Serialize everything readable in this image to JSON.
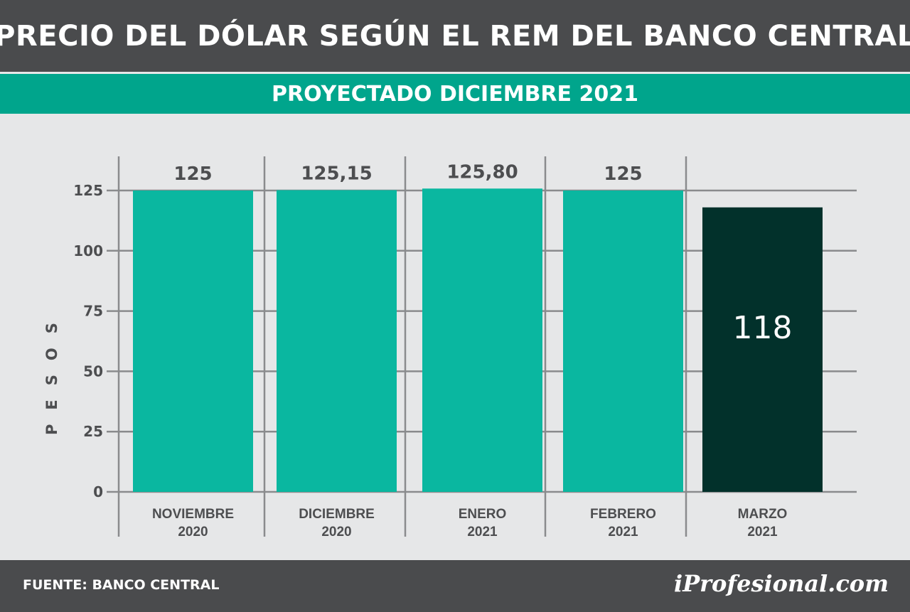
{
  "header": {
    "title": "PRECIO DEL DÓLAR SEGÚN EL REM DEL BANCO CENTRAL",
    "subtitle": "PROYECTADO DICIEMBRE 2021"
  },
  "footer": {
    "source": "FUENTE: BANCO CENTRAL",
    "logo": "iProfesional.com"
  },
  "colors": {
    "bar": "#0ab7a0",
    "bar_highlight": "#02312b",
    "header_bg": "#4a4b4d",
    "subheader_bg": "#00a58c",
    "grid": "#8a8b8d",
    "text": "#4d4e50"
  },
  "chart_data": {
    "type": "bar",
    "title": "PRECIO DEL DÓLAR SEGÚN EL REM DEL BANCO CENTRAL",
    "subtitle": "PROYECTADO DICIEMBRE 2021",
    "ylabel": "PESOS",
    "xlabel": "",
    "ylim": [
      0,
      125
    ],
    "yticks": [
      0,
      25,
      50,
      75,
      100,
      125
    ],
    "grid": true,
    "categories": [
      {
        "line1": "NOVIEMBRE",
        "line2": "2020"
      },
      {
        "line1": "DICIEMBRE",
        "line2": "2020"
      },
      {
        "line1": "ENERO",
        "line2": "2021"
      },
      {
        "line1": "FEBRERO",
        "line2": "2021"
      },
      {
        "line1": "MARZO",
        "line2": "2021"
      }
    ],
    "values": [
      125,
      125.15,
      125.8,
      125,
      118
    ],
    "value_labels": [
      "125",
      "125,15",
      "125,80",
      "125",
      "118"
    ],
    "highlight_index": 4
  }
}
